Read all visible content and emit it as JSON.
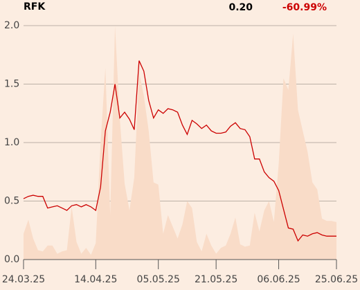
{
  "chart_data": {
    "type": "line",
    "title": "RFK",
    "last_value": "0.20",
    "change": "-60.99%",
    "change_color": "#cc0000",
    "categories": [
      "24.03.25",
      null,
      null,
      null,
      null,
      null,
      null,
      null,
      null,
      null,
      null,
      null,
      null,
      null,
      null,
      "14.04.25",
      null,
      null,
      null,
      null,
      null,
      null,
      null,
      null,
      null,
      null,
      null,
      null,
      "05.05.25",
      null,
      null,
      null,
      null,
      null,
      null,
      null,
      null,
      null,
      null,
      null,
      "21.05.25",
      null,
      null,
      null,
      null,
      null,
      null,
      null,
      null,
      null,
      null,
      null,
      null,
      "06.06.25",
      null,
      null,
      null,
      null,
      null,
      null,
      null,
      null,
      null,
      null,
      null,
      "25.06.25"
    ],
    "series": [
      {
        "type": "area",
        "color": "#f9dcc8",
        "values": [
          0.22,
          0.34,
          0.18,
          0.08,
          0.07,
          0.12,
          0.12,
          0.05,
          0.07,
          0.08,
          0.45,
          0.15,
          0.05,
          0.1,
          0.04,
          0.14,
          1.0,
          1.64,
          0.38,
          2.0,
          1.2,
          0.65,
          0.42,
          0.7,
          1.6,
          1.4,
          1.1,
          0.66,
          0.64,
          0.22,
          0.38,
          0.28,
          0.18,
          0.3,
          0.5,
          0.44,
          0.15,
          0.07,
          0.22,
          0.12,
          0.05,
          0.1,
          0.12,
          0.22,
          0.36,
          0.13,
          0.11,
          0.12,
          0.4,
          0.24,
          0.42,
          0.5,
          0.32,
          0.82,
          1.55,
          1.45,
          1.93,
          1.28,
          1.1,
          0.92,
          0.66,
          0.6,
          0.35,
          0.33,
          0.33,
          0.32
        ]
      },
      {
        "type": "line",
        "color": "#cc0000",
        "values": [
          0.52,
          0.54,
          0.55,
          0.54,
          0.54,
          0.44,
          0.45,
          0.46,
          0.44,
          0.42,
          0.46,
          0.47,
          0.45,
          0.47,
          0.45,
          0.42,
          0.62,
          1.1,
          1.26,
          1.5,
          1.21,
          1.26,
          1.2,
          1.11,
          1.7,
          1.61,
          1.36,
          1.21,
          1.28,
          1.25,
          1.29,
          1.28,
          1.26,
          1.15,
          1.07,
          1.19,
          1.16,
          1.12,
          1.15,
          1.1,
          1.08,
          1.08,
          1.09,
          1.14,
          1.17,
          1.12,
          1.11,
          1.05,
          0.86,
          0.86,
          0.75,
          0.7,
          0.67,
          0.59,
          0.43,
          0.27,
          0.26,
          0.16,
          0.21,
          0.2,
          0.22,
          0.23,
          0.21,
          0.2,
          0.2,
          0.2
        ]
      }
    ],
    "ylim": [
      0,
      2
    ],
    "yticks": [
      {
        "value": 0,
        "label": "0.0"
      },
      {
        "value": 0.5,
        "label": "0.5"
      },
      {
        "value": 1,
        "label": "1.0"
      },
      {
        "value": 1.5,
        "label": "1.5"
      },
      {
        "value": 2,
        "label": "2.0"
      }
    ],
    "grid": true
  }
}
